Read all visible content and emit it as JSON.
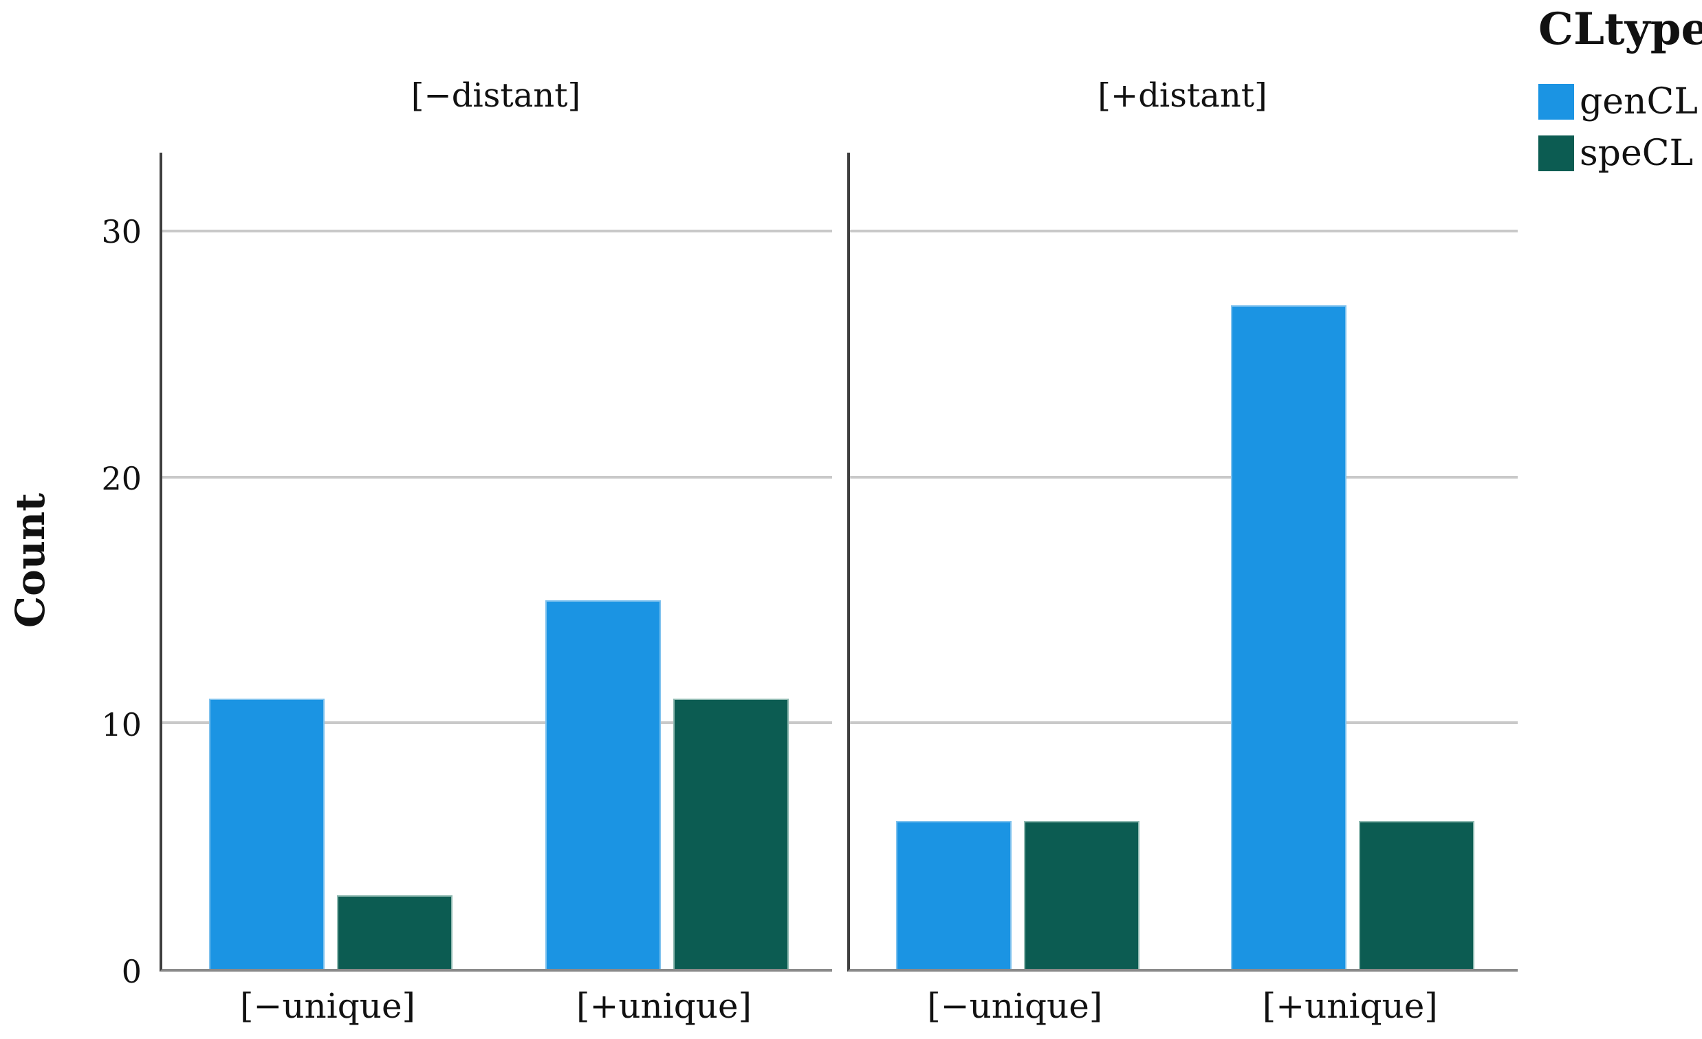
{
  "legend": {
    "title": "CLtype",
    "items": [
      {
        "label": "genCL",
        "color": "#1b94e3",
        "border_color": "#7fc2ee"
      },
      {
        "label": "speCL",
        "color": "#0c5c52",
        "border_color": "#8fb9b1"
      }
    ]
  },
  "y_axis": {
    "label": "Count",
    "ticks": [
      0,
      10,
      20,
      30
    ],
    "max": 33.2
  },
  "chart_data": {
    "type": "bar",
    "title": "",
    "ylabel": "Count",
    "xlabel": "",
    "ylim": [
      0,
      33.2
    ],
    "yticks": [
      0,
      10,
      20,
      30
    ],
    "grid": "horizontal",
    "legend_title": "CLtype",
    "legend_position": "top-right",
    "legend_entries": [
      "genCL",
      "speCL"
    ],
    "categories": [
      "[−unique]",
      "[+unique]"
    ],
    "panels": [
      {
        "title": "[−distant]",
        "categories": [
          "[−unique]",
          "[+unique]"
        ],
        "series": [
          {
            "name": "genCL",
            "values": [
              11,
              15
            ]
          },
          {
            "name": "speCL",
            "values": [
              3,
              11
            ]
          }
        ]
      },
      {
        "title": "[+distant]",
        "categories": [
          "[−unique]",
          "[+unique]"
        ],
        "series": [
          {
            "name": "genCL",
            "values": [
              6,
              27
            ]
          },
          {
            "name": "speCL",
            "values": [
              6,
              6
            ]
          }
        ]
      }
    ],
    "series_colors": {
      "genCL": "#1b94e3",
      "speCL": "#0c5c52"
    }
  },
  "style": {
    "background": "#ffffff",
    "text_color": "#111111",
    "gridline_color": "#c9c9c9",
    "spine_color": "#3f3f3f",
    "baseline_color": "#8a8a8a"
  }
}
